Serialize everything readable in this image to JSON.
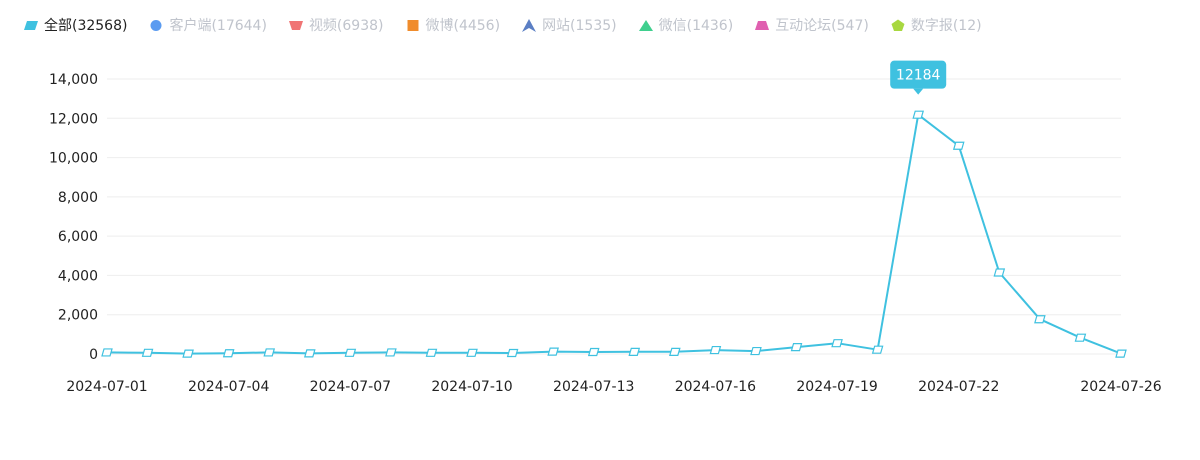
{
  "legend": [
    {
      "label": "全部(32568)",
      "color": "#3fc1e0",
      "shape": "parallelogram",
      "active": true
    },
    {
      "label": "客户端(17644)",
      "color": "#5b9bf0",
      "shape": "circle",
      "active": false
    },
    {
      "label": "视频(6938)",
      "color": "#f07474",
      "shape": "trapezoid-down",
      "active": false
    },
    {
      "label": "微博(4456)",
      "color": "#f08c2c",
      "shape": "square",
      "active": false
    },
    {
      "label": "网站(1535)",
      "color": "#5b7fc4",
      "shape": "arrow-up",
      "active": false
    },
    {
      "label": "微信(1436)",
      "color": "#3fcf8e",
      "shape": "triangle",
      "active": false
    },
    {
      "label": "互动论坛(547)",
      "color": "#e060b0",
      "shape": "trapezoid-up",
      "active": false
    },
    {
      "label": "数字报(12)",
      "color": "#a8d840",
      "shape": "pentagon",
      "active": false
    }
  ],
  "chart_data": {
    "type": "line",
    "title": "",
    "xlabel": "",
    "ylabel": "",
    "ylim": [
      0,
      14000
    ],
    "yticks": [
      0,
      2000,
      4000,
      6000,
      8000,
      10000,
      12000,
      14000
    ],
    "ytick_labels": [
      "0",
      "2,000",
      "4,000",
      "6,000",
      "8,000",
      "10,000",
      "12,000",
      "14,000"
    ],
    "x": [
      "2024-07-01",
      "2024-07-02",
      "2024-07-03",
      "2024-07-04",
      "2024-07-05",
      "2024-07-06",
      "2024-07-07",
      "2024-07-08",
      "2024-07-09",
      "2024-07-10",
      "2024-07-11",
      "2024-07-12",
      "2024-07-13",
      "2024-07-14",
      "2024-07-15",
      "2024-07-16",
      "2024-07-17",
      "2024-07-18",
      "2024-07-19",
      "2024-07-20",
      "2024-07-21",
      "2024-07-22",
      "2024-07-23",
      "2024-07-24",
      "2024-07-25",
      "2024-07-26"
    ],
    "xtick_labels": [
      "2024-07-01",
      "2024-07-04",
      "2024-07-07",
      "2024-07-10",
      "2024-07-13",
      "2024-07-16",
      "2024-07-19",
      "2024-07-22",
      "2024-07-26"
    ],
    "grid": true,
    "series": [
      {
        "name": "全部(32568)",
        "color": "#3fc1e0",
        "values": [
          80,
          60,
          20,
          40,
          80,
          30,
          60,
          80,
          60,
          60,
          50,
          120,
          100,
          110,
          110,
          200,
          150,
          350,
          550,
          220,
          12184,
          10600,
          4150,
          1770,
          830,
          20
        ]
      }
    ],
    "tooltip": {
      "index": 20,
      "label": "12184",
      "color": "#3fc1e0"
    }
  }
}
